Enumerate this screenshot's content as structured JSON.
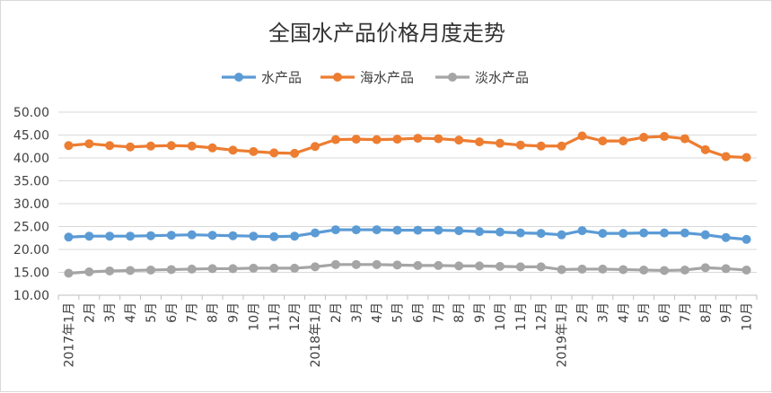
{
  "chart_data": {
    "type": "line",
    "title": "全国水产品价格月度走势",
    "xlabel": "",
    "ylabel": "",
    "ylim": [
      10,
      50
    ],
    "yticks": [
      "10.00",
      "15.00",
      "20.00",
      "25.00",
      "30.00",
      "35.00",
      "40.00",
      "45.00",
      "50.00"
    ],
    "categories": [
      "2017年1月",
      "2月",
      "3月",
      "4月",
      "5月",
      "6月",
      "7月",
      "8月",
      "9月",
      "10月",
      "11月",
      "12月",
      "2018年1月",
      "2月",
      "3月",
      "4月",
      "5月",
      "6月",
      "7月",
      "8月",
      "9月",
      "10月",
      "11月",
      "12月",
      "2019年1月",
      "2月",
      "3月",
      "4月",
      "5月",
      "6月",
      "7月",
      "8月",
      "9月",
      "10月"
    ],
    "grid": true,
    "legend_position": "top",
    "series": [
      {
        "name": "水产品",
        "color": "#5b9bd5",
        "values": [
          22.7,
          22.9,
          22.9,
          22.9,
          23.0,
          23.1,
          23.2,
          23.1,
          23.0,
          22.9,
          22.8,
          22.9,
          23.6,
          24.3,
          24.3,
          24.3,
          24.2,
          24.2,
          24.2,
          24.1,
          23.9,
          23.8,
          23.6,
          23.5,
          23.2,
          24.1,
          23.5,
          23.5,
          23.6,
          23.6,
          23.6,
          23.2,
          22.6,
          22.2
        ]
      },
      {
        "name": "海水产品",
        "color": "#ed7d31",
        "values": [
          42.7,
          43.1,
          42.7,
          42.4,
          42.6,
          42.7,
          42.6,
          42.2,
          41.7,
          41.4,
          41.1,
          41.0,
          42.5,
          44.0,
          44.1,
          44.0,
          44.1,
          44.3,
          44.2,
          43.9,
          43.5,
          43.2,
          42.8,
          42.6,
          42.6,
          44.8,
          43.7,
          43.7,
          44.5,
          44.7,
          44.2,
          41.8,
          40.3,
          40.1
        ]
      },
      {
        "name": "淡水产品",
        "color": "#a5a5a5",
        "values": [
          14.8,
          15.1,
          15.3,
          15.4,
          15.5,
          15.6,
          15.7,
          15.8,
          15.8,
          15.9,
          15.9,
          15.9,
          16.2,
          16.7,
          16.7,
          16.7,
          16.6,
          16.5,
          16.5,
          16.4,
          16.4,
          16.3,
          16.2,
          16.2,
          15.6,
          15.7,
          15.7,
          15.6,
          15.5,
          15.4,
          15.5,
          16.0,
          15.8,
          15.5
        ]
      }
    ]
  }
}
